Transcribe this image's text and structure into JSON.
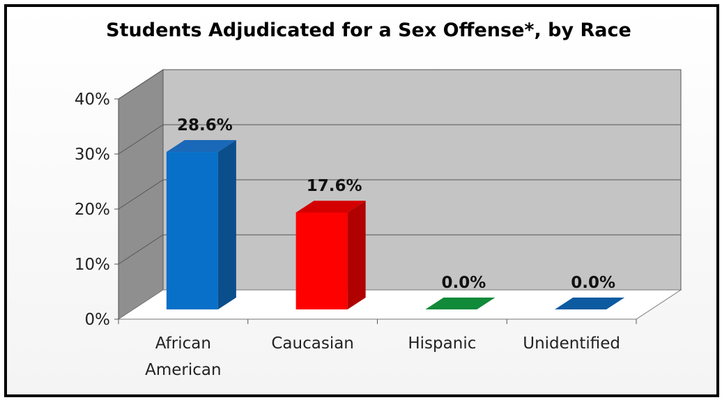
{
  "chart_data": {
    "type": "bar",
    "title": "Students Adjudicated for a Sex Offense*, by Race",
    "xlabel": "",
    "ylabel": "",
    "categories": [
      [
        "African",
        "American"
      ],
      [
        "Caucasian"
      ],
      [
        "Hispanic"
      ],
      [
        "Unidentified"
      ]
    ],
    "values": [
      28.6,
      17.6,
      0.0,
      0.0
    ],
    "data_labels": [
      "28.6%",
      "17.6%",
      "0.0%",
      "0.0%"
    ],
    "y_ticks": [
      "0%",
      "10%",
      "20%",
      "30%",
      "40%"
    ],
    "ylim": [
      0,
      40
    ],
    "grid": true,
    "legend": "none",
    "bar_colors": [
      {
        "front": "#0870C8",
        "side": "#0A4E8C",
        "top": "#1A68B8"
      },
      {
        "front": "#FF0000",
        "side": "#B00000",
        "top": "#D40000"
      },
      {
        "front": "#0E9A3E",
        "side": "#07702C",
        "top": "#118A3A"
      },
      {
        "front": "#1060B0",
        "side": "#0A4A88",
        "top": "#0C5AA0"
      }
    ],
    "wall_color": "#c4c4c4",
    "side_wall_color": "#8f8f8f"
  }
}
